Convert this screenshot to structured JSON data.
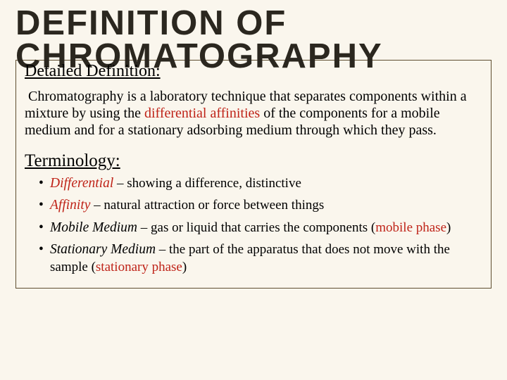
{
  "title_line1": "DEFINITION OF",
  "title_line2": "CHROMATOGRAPHY",
  "detailed_heading": "Detailed Definition:",
  "definition_pre": "Chromatography is a laboratory technique that separates components within a mixture by using the ",
  "definition_highlight": "differential affinities",
  "definition_post": " of the components for a mobile medium and for a stationary adsorbing medium through which they pass.",
  "terminology_heading": "Terminology:",
  "terms": {
    "0": {
      "name": "Differential",
      "sep": " – ",
      "def": "showing a difference, distinctive",
      "phase": ""
    },
    "1": {
      "name": "Affinity",
      "sep": " – ",
      "def": "natural attraction or force between things",
      "phase": ""
    },
    "2": {
      "name": "Mobile Medium",
      "sep": " – ",
      "def": "gas or liquid that carries the components ",
      "phase_open": "(",
      "phase": "mobile phase",
      "phase_close": ")"
    },
    "3": {
      "name": "Stationary Medium",
      "sep": " – ",
      "def": "the part of the apparatus that does not move with the sample ",
      "phase_open": "(",
      "phase": "stationary phase",
      "phase_close": ")"
    }
  },
  "colors": {
    "background": "#faf6ed",
    "border": "#5e4d2f",
    "text": "#000000",
    "title": "#2b271f",
    "highlight": "#bf2318"
  },
  "typography": {
    "title_fontsize": 49,
    "subhead_fontsize": 24,
    "body_fontsize": 20,
    "term_fontsize": 19.5
  }
}
